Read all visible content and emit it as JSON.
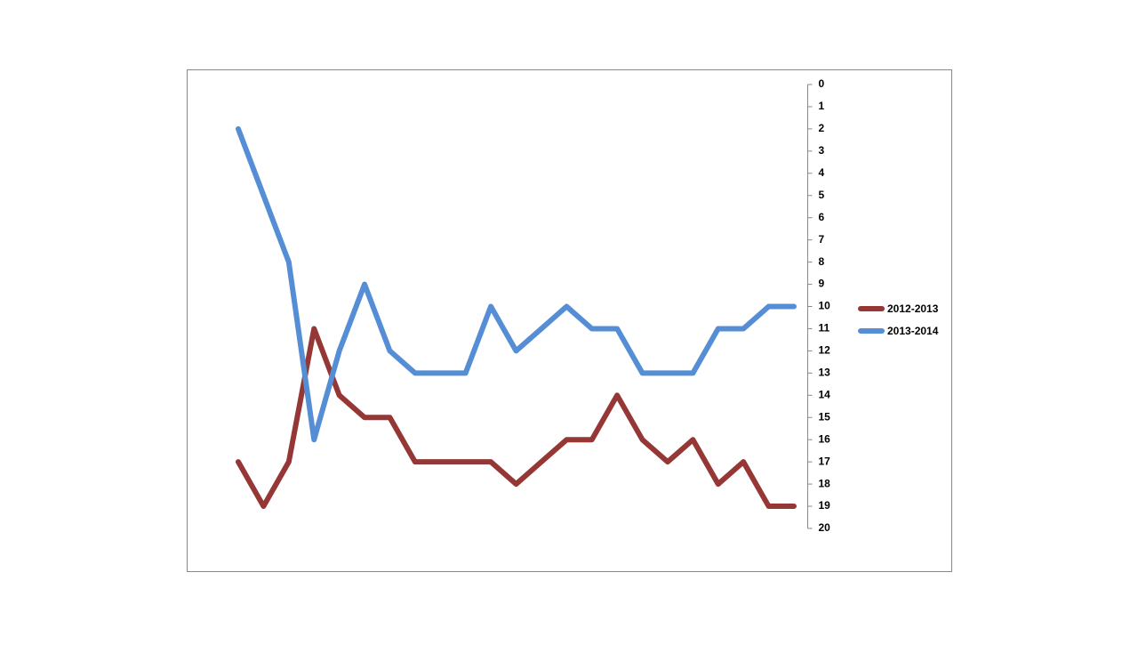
{
  "chart_data": {
    "type": "line",
    "categories": [
      null,
      null,
      null,
      null,
      null,
      null,
      null,
      null,
      null,
      null,
      null,
      null,
      null,
      null,
      null,
      null,
      null,
      null,
      null,
      null,
      null,
      null,
      null
    ],
    "series": [
      {
        "name": "2012-2013",
        "color": "#953735",
        "values": [
          17,
          19,
          17,
          11,
          14,
          15,
          15,
          17,
          17,
          17,
          17,
          18,
          17,
          16,
          16,
          14,
          16,
          17,
          16,
          18,
          17,
          19,
          19
        ]
      },
      {
        "name": "2013-2014",
        "color": "#558ed5",
        "values": [
          2,
          5,
          8,
          16,
          12,
          9,
          12,
          13,
          13,
          13,
          10,
          12,
          11,
          10,
          11,
          11,
          13,
          13,
          13,
          11,
          11,
          10,
          10
        ]
      }
    ],
    "ylim": [
      0,
      20
    ],
    "yticks": [
      0,
      1,
      2,
      3,
      4,
      5,
      6,
      7,
      8,
      9,
      10,
      11,
      12,
      13,
      14,
      15,
      16,
      17,
      18,
      19,
      20
    ],
    "y_reversed": true,
    "y_axis_side": "right",
    "legend": "right"
  }
}
